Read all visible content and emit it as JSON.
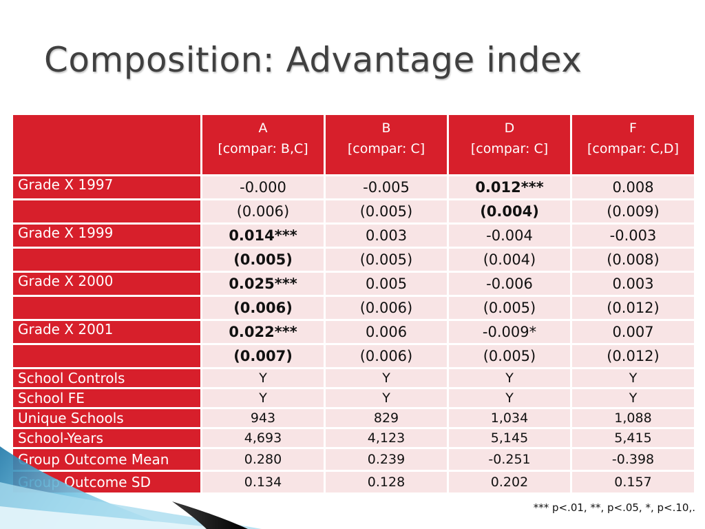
{
  "slide": {
    "title": "Composition: Advantage index",
    "footnote": "*** p<.01, **, p<.05, *, p<.10,."
  },
  "colors": {
    "accent_red": "#d71f2b",
    "cell_pink": "#f8e4e5",
    "title_gray": "#404040",
    "deco_blue": "#2f8fbf",
    "deco_black": "#111111"
  },
  "table": {
    "columns": [
      {
        "letter": "A",
        "sub": "[compar: B,C]"
      },
      {
        "letter": "B",
        "sub": "[compar: C]"
      },
      {
        "letter": "D",
        "sub": "[compar: C]"
      },
      {
        "letter": "F",
        "sub": "[compar: C,D]"
      }
    ],
    "rows": [
      {
        "label": "Grade X 1997",
        "values": [
          "-0.000",
          "-0.005",
          "0.012***",
          "0.008"
        ]
      },
      {
        "label": "",
        "values": [
          "(0.006)",
          "(0.005)",
          "(0.004)",
          "(0.009)"
        ]
      },
      {
        "label": "Grade X 1999",
        "values": [
          "0.014***",
          "0.003",
          "-0.004",
          "-0.003"
        ]
      },
      {
        "label": "",
        "values": [
          "(0.005)",
          "(0.005)",
          "(0.004)",
          "(0.008)"
        ]
      },
      {
        "label": "Grade X 2000",
        "values": [
          "0.025***",
          "0.005",
          "-0.006",
          "0.003"
        ]
      },
      {
        "label": "",
        "values": [
          "(0.006)",
          "(0.006)",
          "(0.005)",
          "(0.012)"
        ]
      },
      {
        "label": "Grade X 2001",
        "values": [
          "0.022***",
          "0.006",
          "-0.009*",
          "0.007"
        ]
      },
      {
        "label": "",
        "values": [
          "(0.007)",
          "(0.006)",
          "(0.005)",
          "(0.012)"
        ]
      },
      {
        "label": "School Controls",
        "values": [
          "Y",
          "Y",
          "Y",
          "Y"
        ]
      },
      {
        "label": "School FE",
        "values": [
          "Y",
          "Y",
          "Y",
          "Y"
        ]
      },
      {
        "label": "Unique Schools",
        "values": [
          "943",
          "829",
          "1,034",
          "1,088"
        ]
      },
      {
        "label": "School-Years",
        "values": [
          "4,693",
          "4,123",
          "5,145",
          "5,415"
        ]
      },
      {
        "label": "Group Outcome Mean",
        "values": [
          "0.280",
          "0.239",
          "-0.251",
          "-0.398"
        ]
      },
      {
        "label": "Group Outcome SD",
        "values": [
          "0.134",
          "0.128",
          "0.202",
          "0.157"
        ]
      }
    ]
  }
}
